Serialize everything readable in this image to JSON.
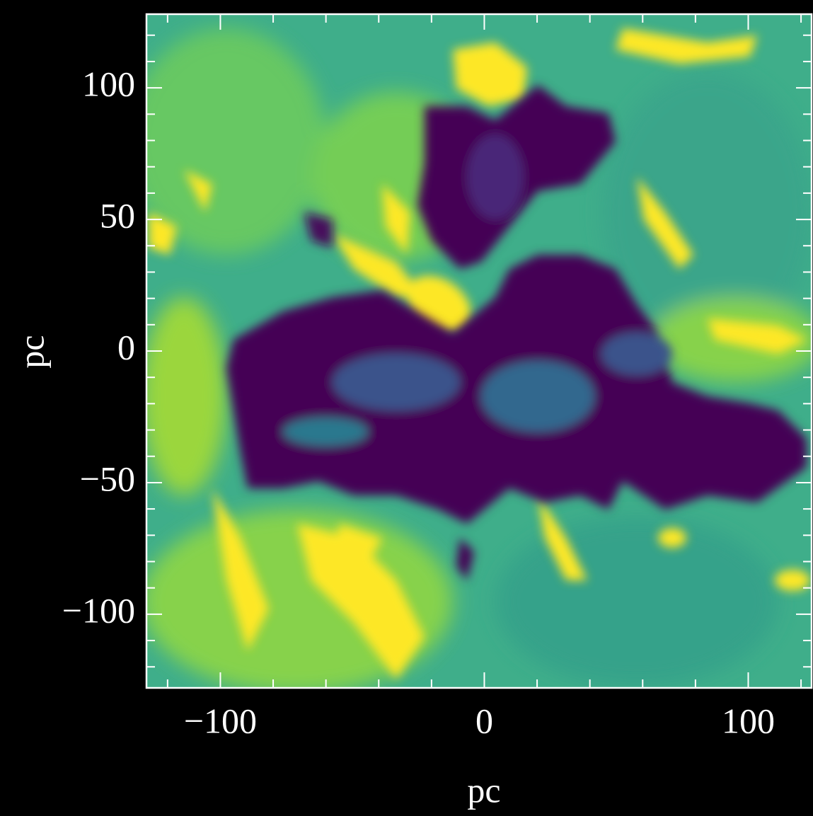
{
  "chart_data": {
    "type": "image",
    "xlabel": "pc",
    "ylabel": "pc",
    "xlim": [
      -128,
      124
    ],
    "ylim": [
      -128,
      128
    ],
    "xticks": [
      {
        "value": -100,
        "label": "−100"
      },
      0,
      100
    ],
    "yticks": [
      {
        "value": -100,
        "label": "−100"
      },
      {
        "value": -50,
        "label": "−50"
      },
      0,
      50,
      100
    ],
    "xminorticks": [
      -120,
      -80,
      -60,
      -40,
      -20,
      20,
      40,
      60,
      80,
      120
    ],
    "yminorticks": [
      -120,
      -110,
      -90,
      -80,
      -70,
      -60,
      -40,
      -30,
      -20,
      -10,
      10,
      20,
      30,
      40,
      60,
      70,
      80,
      90,
      110,
      120
    ]
  }
}
